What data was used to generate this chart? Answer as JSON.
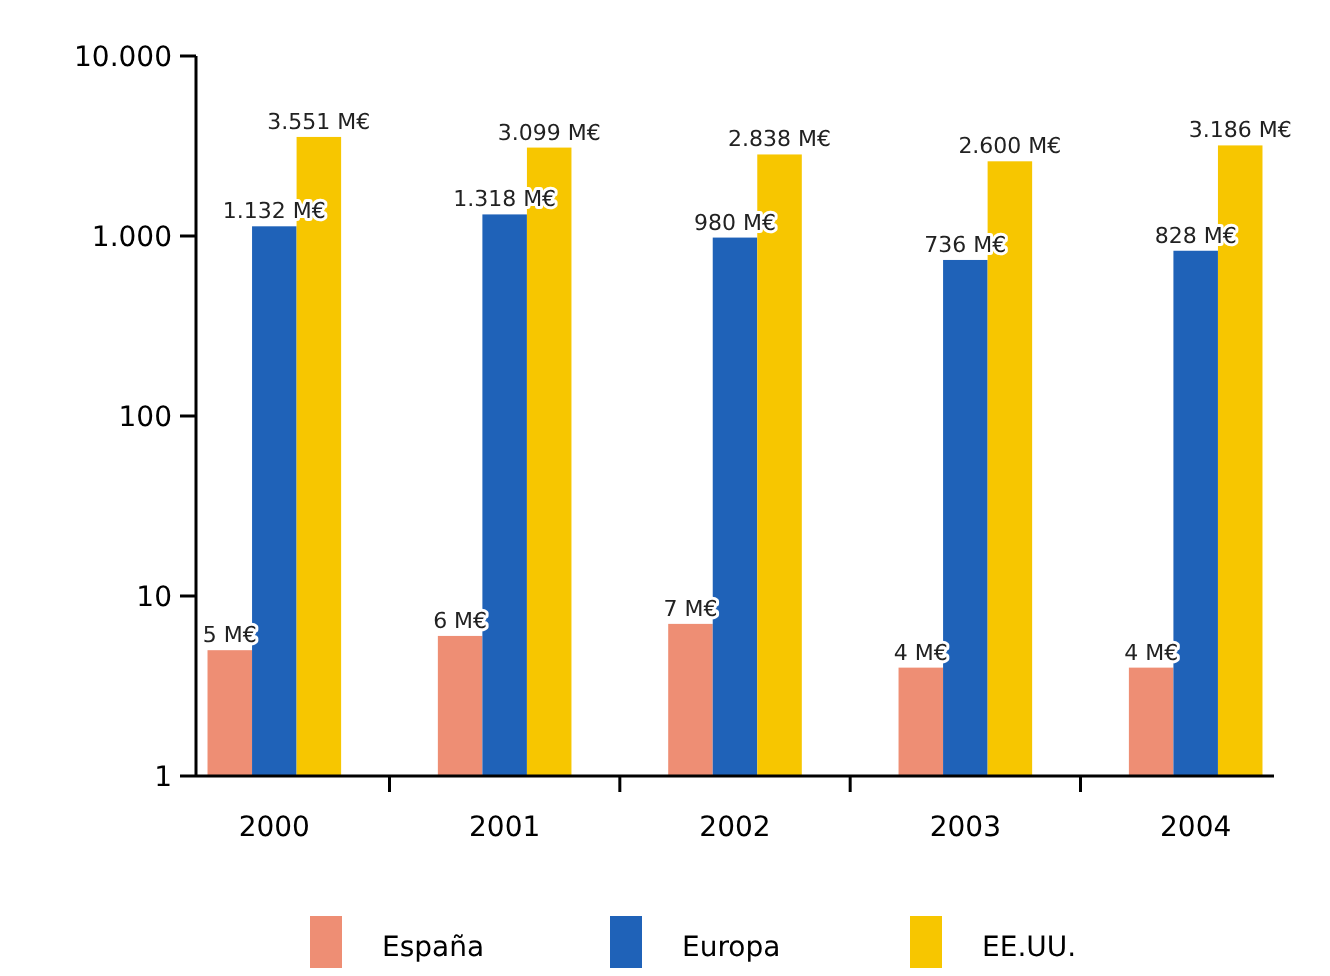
{
  "chart_data": {
    "type": "bar",
    "categories": [
      "2000",
      "2001",
      "2002",
      "2003",
      "2004"
    ],
    "series": [
      {
        "name": "España",
        "color": "#ee8e74",
        "values": [
          5,
          6,
          7,
          4,
          4
        ],
        "value_labels": [
          "5 M€",
          "6 M€",
          "7 M€",
          "4 M€",
          "4 M€"
        ]
      },
      {
        "name": "Europa",
        "color": "#1f62b8",
        "values": [
          1132,
          1318,
          980,
          736,
          828
        ],
        "value_labels": [
          "1.132 M€",
          "1.318 M€",
          "980 M€",
          "736 M€",
          "828 M€"
        ]
      },
      {
        "name": "EE.UU.",
        "color": "#f7c600",
        "values": [
          3551,
          3099,
          2838,
          2600,
          3186
        ],
        "value_labels": [
          "3.551 M€",
          "3.099 M€",
          "2.838 M€",
          "2.600 M€",
          "3.186 M€"
        ]
      }
    ],
    "log": true,
    "ylim": [
      1,
      10000
    ],
    "yticks": [
      1,
      10,
      100,
      {
        "value": 1000,
        "label": "1.000"
      },
      {
        "value": 10000,
        "label": "10.000"
      }
    ],
    "legend": "bottom",
    "grid": false
  }
}
